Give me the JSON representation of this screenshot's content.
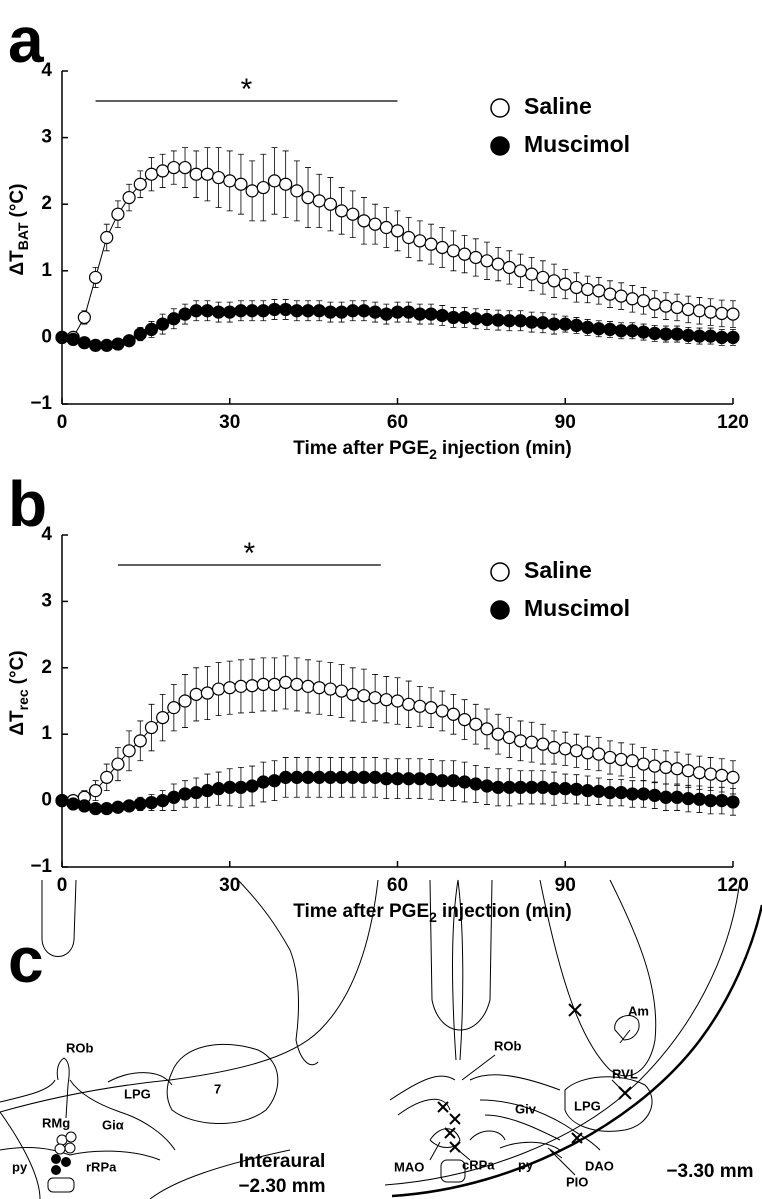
{
  "chart_data": [
    {
      "type": "line",
      "panel": "a",
      "ylabel": "ΔT",
      "ylabel_sub": "BAT",
      "ylabel_unit": "(°C)",
      "xlabel": "Time after PGE",
      "xlabel_sub": "2",
      "xlabel_rest": "injection (min)",
      "xlim": [
        0,
        120
      ],
      "ylim": [
        -1,
        4
      ],
      "xticks": [
        0,
        30,
        60,
        90,
        120
      ],
      "yticks": [
        {
          "value": -1,
          "label": "−1"
        },
        0,
        1,
        2,
        3,
        4
      ],
      "significance": {
        "label": "*",
        "x": [
          6,
          60
        ]
      },
      "legend": "upper right",
      "x": [
        0,
        2,
        4,
        6,
        8,
        10,
        12,
        14,
        16,
        18,
        20,
        22,
        24,
        26,
        28,
        30,
        32,
        34,
        36,
        38,
        40,
        42,
        44,
        46,
        48,
        50,
        52,
        54,
        56,
        58,
        60,
        62,
        64,
        66,
        68,
        70,
        72,
        74,
        76,
        78,
        80,
        82,
        84,
        86,
        88,
        90,
        92,
        94,
        96,
        98,
        100,
        102,
        104,
        106,
        108,
        110,
        112,
        114,
        116,
        118,
        120
      ],
      "series": [
        {
          "name": "Saline",
          "color": "#ffffff",
          "values": [
            0,
            0,
            0.3,
            0.9,
            1.5,
            1.85,
            2.1,
            2.3,
            2.45,
            2.5,
            2.55,
            2.55,
            2.45,
            2.45,
            2.4,
            2.35,
            2.3,
            2.2,
            2.25,
            2.35,
            2.3,
            2.2,
            2.1,
            2.05,
            2.0,
            1.9,
            1.85,
            1.75,
            1.7,
            1.65,
            1.6,
            1.5,
            1.45,
            1.4,
            1.35,
            1.3,
            1.25,
            1.2,
            1.15,
            1.1,
            1.05,
            1.0,
            0.95,
            0.9,
            0.85,
            0.8,
            0.75,
            0.72,
            0.7,
            0.65,
            0.62,
            0.58,
            0.55,
            0.5,
            0.47,
            0.45,
            0.42,
            0.4,
            0.38,
            0.36,
            0.35
          ],
          "errors": [
            0.02,
            0.03,
            0.1,
            0.15,
            0.2,
            0.2,
            0.2,
            0.2,
            0.25,
            0.25,
            0.25,
            0.3,
            0.35,
            0.4,
            0.45,
            0.45,
            0.45,
            0.45,
            0.5,
            0.5,
            0.5,
            0.45,
            0.45,
            0.4,
            0.4,
            0.35,
            0.35,
            0.35,
            0.3,
            0.3,
            0.3,
            0.3,
            0.3,
            0.3,
            0.3,
            0.3,
            0.28,
            0.28,
            0.28,
            0.25,
            0.25,
            0.25,
            0.25,
            0.25,
            0.25,
            0.22,
            0.22,
            0.2,
            0.2,
            0.2,
            0.2,
            0.2,
            0.2,
            0.2,
            0.2,
            0.2,
            0.2,
            0.2,
            0.2,
            0.2,
            0.2
          ]
        },
        {
          "name": "Muscimol",
          "color": "#000000",
          "values": [
            0,
            -0.03,
            -0.08,
            -0.12,
            -0.12,
            -0.1,
            -0.05,
            0.05,
            0.12,
            0.2,
            0.28,
            0.35,
            0.4,
            0.4,
            0.38,
            0.38,
            0.4,
            0.4,
            0.4,
            0.42,
            0.42,
            0.4,
            0.4,
            0.4,
            0.38,
            0.38,
            0.4,
            0.4,
            0.38,
            0.35,
            0.38,
            0.38,
            0.35,
            0.35,
            0.33,
            0.3,
            0.3,
            0.28,
            0.27,
            0.26,
            0.25,
            0.25,
            0.23,
            0.22,
            0.2,
            0.2,
            0.18,
            0.15,
            0.13,
            0.12,
            0.1,
            0.1,
            0.08,
            0.06,
            0.05,
            0.05,
            0.03,
            0.02,
            0.02,
            0,
            0
          ],
          "errors": [
            0.02,
            0.03,
            0.05,
            0.05,
            0.05,
            0.05,
            0.08,
            0.1,
            0.12,
            0.15,
            0.15,
            0.15,
            0.15,
            0.15,
            0.15,
            0.15,
            0.15,
            0.15,
            0.15,
            0.15,
            0.15,
            0.15,
            0.15,
            0.15,
            0.15,
            0.15,
            0.15,
            0.15,
            0.15,
            0.15,
            0.15,
            0.15,
            0.15,
            0.15,
            0.15,
            0.15,
            0.15,
            0.15,
            0.15,
            0.15,
            0.15,
            0.15,
            0.15,
            0.15,
            0.15,
            0.12,
            0.12,
            0.12,
            0.12,
            0.12,
            0.12,
            0.12,
            0.12,
            0.12,
            0.12,
            0.12,
            0.12,
            0.12,
            0.12,
            0.12,
            0.12
          ]
        }
      ]
    },
    {
      "type": "line",
      "panel": "b",
      "ylabel": "ΔT",
      "ylabel_sub": "rec",
      "ylabel_unit": "(°C)",
      "xlabel": "Time after PGE",
      "xlabel_sub": "2",
      "xlabel_rest": "injection (min)",
      "xlim": [
        0,
        120
      ],
      "ylim": [
        -1,
        4
      ],
      "xticks": [
        0,
        30,
        60,
        90,
        120
      ],
      "yticks": [
        {
          "value": -1,
          "label": "−1"
        },
        0,
        1,
        2,
        3,
        4
      ],
      "significance": {
        "label": "*",
        "x": [
          10,
          57
        ]
      },
      "legend": "upper right",
      "x": [
        0,
        2,
        4,
        6,
        8,
        10,
        12,
        14,
        16,
        18,
        20,
        22,
        24,
        26,
        28,
        30,
        32,
        34,
        36,
        38,
        40,
        42,
        44,
        46,
        48,
        50,
        52,
        54,
        56,
        58,
        60,
        62,
        64,
        66,
        68,
        70,
        72,
        74,
        76,
        78,
        80,
        82,
        84,
        86,
        88,
        90,
        92,
        94,
        96,
        98,
        100,
        102,
        104,
        106,
        108,
        110,
        112,
        114,
        116,
        118,
        120
      ],
      "series": [
        {
          "name": "Saline",
          "color": "#ffffff",
          "values": [
            0,
            0,
            0.05,
            0.15,
            0.35,
            0.55,
            0.75,
            0.9,
            1.1,
            1.25,
            1.4,
            1.5,
            1.6,
            1.62,
            1.68,
            1.7,
            1.72,
            1.73,
            1.75,
            1.75,
            1.78,
            1.75,
            1.72,
            1.7,
            1.68,
            1.65,
            1.6,
            1.58,
            1.55,
            1.52,
            1.5,
            1.45,
            1.42,
            1.4,
            1.35,
            1.3,
            1.22,
            1.15,
            1.08,
            1.0,
            0.95,
            0.9,
            0.88,
            0.85,
            0.8,
            0.78,
            0.75,
            0.72,
            0.7,
            0.65,
            0.62,
            0.6,
            0.55,
            0.52,
            0.5,
            0.48,
            0.45,
            0.42,
            0.4,
            0.38,
            0.35
          ],
          "errors": [
            0.02,
            0.05,
            0.1,
            0.15,
            0.2,
            0.25,
            0.3,
            0.3,
            0.35,
            0.35,
            0.35,
            0.4,
            0.4,
            0.4,
            0.4,
            0.4,
            0.4,
            0.4,
            0.4,
            0.4,
            0.4,
            0.4,
            0.4,
            0.4,
            0.4,
            0.4,
            0.4,
            0.4,
            0.35,
            0.35,
            0.35,
            0.35,
            0.3,
            0.3,
            0.3,
            0.3,
            0.3,
            0.3,
            0.3,
            0.3,
            0.3,
            0.3,
            0.3,
            0.3,
            0.25,
            0.25,
            0.25,
            0.25,
            0.25,
            0.25,
            0.25,
            0.25,
            0.25,
            0.25,
            0.25,
            0.25,
            0.25,
            0.25,
            0.25,
            0.25,
            0.25
          ]
        },
        {
          "name": "Muscimol",
          "color": "#000000",
          "values": [
            0,
            -0.05,
            -0.08,
            -0.12,
            -0.12,
            -0.1,
            -0.08,
            -0.05,
            -0.03,
            0,
            0.05,
            0.1,
            0.12,
            0.15,
            0.18,
            0.2,
            0.2,
            0.22,
            0.28,
            0.3,
            0.35,
            0.35,
            0.35,
            0.35,
            0.35,
            0.35,
            0.35,
            0.35,
            0.35,
            0.33,
            0.33,
            0.33,
            0.33,
            0.32,
            0.3,
            0.3,
            0.28,
            0.25,
            0.22,
            0.2,
            0.2,
            0.2,
            0.2,
            0.2,
            0.18,
            0.18,
            0.17,
            0.15,
            0.14,
            0.12,
            0.12,
            0.1,
            0.1,
            0.08,
            0.05,
            0.05,
            0.03,
            0.02,
            0,
            0,
            -0.02
          ],
          "errors": [
            0.02,
            0.03,
            0.05,
            0.05,
            0.05,
            0.05,
            0.08,
            0.1,
            0.12,
            0.15,
            0.2,
            0.2,
            0.22,
            0.25,
            0.25,
            0.28,
            0.3,
            0.3,
            0.3,
            0.3,
            0.3,
            0.3,
            0.3,
            0.3,
            0.3,
            0.3,
            0.3,
            0.3,
            0.3,
            0.3,
            0.3,
            0.3,
            0.3,
            0.3,
            0.3,
            0.3,
            0.3,
            0.28,
            0.28,
            0.28,
            0.28,
            0.25,
            0.25,
            0.25,
            0.25,
            0.22,
            0.22,
            0.22,
            0.2,
            0.2,
            0.2,
            0.2,
            0.2,
            0.2,
            0.2,
            0.2,
            0.2,
            0.2,
            0.2,
            0.2,
            0.2
          ]
        }
      ]
    }
  ],
  "diagram": {
    "panel": "c",
    "left": {
      "labels": [
        "ROb",
        "LPG",
        "7",
        "RMg",
        "Giα",
        "py",
        "rRPa"
      ],
      "caption": [
        "Interaural",
        "−2.30 mm"
      ]
    },
    "right": {
      "labels": [
        "ROb",
        "Am",
        "RVL",
        "LPG",
        "Giv",
        "MAO",
        "cRPa",
        "py",
        "DAO",
        "PIO"
      ],
      "caption": [
        "−3.30 mm"
      ]
    }
  }
}
